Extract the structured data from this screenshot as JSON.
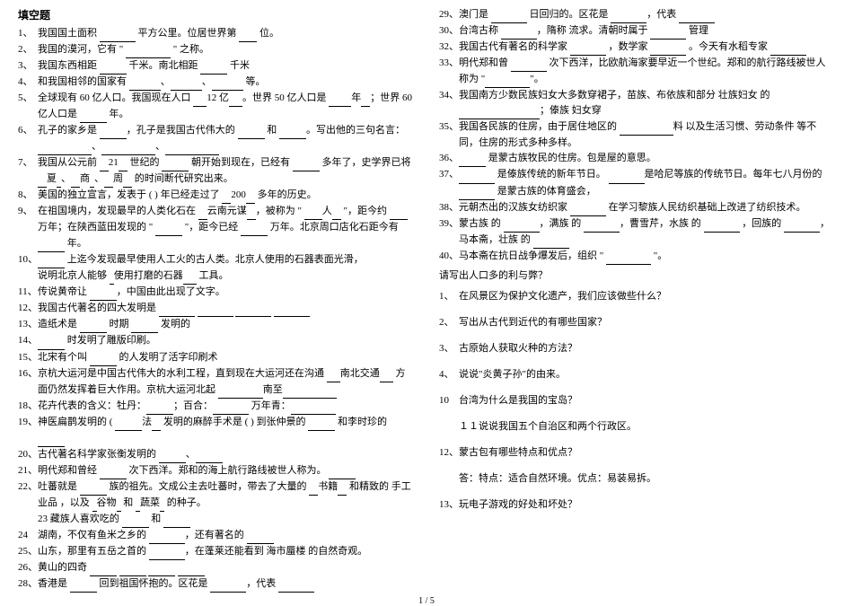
{
  "left": {
    "heading": "填空题",
    "items": [
      {
        "n": "1、",
        "t": "我国国土面积 ________ 平方公里。位居世界第 ____ 位。"
      },
      {
        "n": "2、",
        "t": "我国的漠河，它有 \" __________ \" 之称。"
      },
      {
        "n": "3、",
        "t": "我国东西相距 ______ 千米。南北相距 ______ 千米"
      },
      {
        "n": "4、",
        "t": "和我国相邻的国家有 _______、_______、_______ 等。"
      },
      {
        "n": "5、",
        "t": "全球现有  60 亿人口。我国现在人口 ___12 亿___。世界  50 亿人口是 _____年__；世界 60 亿人口是 ______ 年。"
      },
      {
        "n": "6、",
        "t": "孔子的家乡是 ______，孔子是我国古代伟大的 ______ 和 ______。写出他的三句名言：____________、____________、____________"
      },
      {
        "n": "7、",
        "t": "我国从公元前 __21__ 世纪的 ______ 朝开始到现在，已经有 ______ 多年了，史学界已将 __夏_、__商_、__周__ 的时间断代研究出来。"
      },
      {
        "n": "8、",
        "t": "美国的独立宣言，发表于  (           ) 年已经走过了 __200__ 多年的历史。"
      },
      {
        "n": "9、",
        "t": "在祖国境内，发现最早的人类化石在 __云南元谋__，被称为 \" ____人__ \"，距今约 ____ 万年；在陕西蓝田发现的 \" ______ \"，距今已经 ______ 万年。北京周口店化石距今有 ______ 年。"
      },
      {
        "n": "10、",
        "t": "______ 上迄今发现最早使用人工火的古人类。北京人使用的石器表面光滑，"
      },
      {
        "n": "",
        "t": "说明北京人能够 _使用打磨的石器___ 工具。"
      },
      {
        "n": "11、",
        "t": "传说黄帝让 ______，中国由此出现了文字。"
      },
      {
        "n": "12、",
        "t": "我国古代著名的四大发明是 ________ ________ ________ ________"
      },
      {
        "n": "13、",
        "t": "造纸术是 ______ 时期 ______ 发明的"
      },
      {
        "n": "14、",
        "t": "______ 时发明了雕版印刷。"
      },
      {
        "n": "15、",
        "t": "北宋有个叫 ______ 的人发明了活字印刷术"
      },
      {
        "n": "16、",
        "t": "京杭大运河是中国古代伟大的水利工程，直到现在大运河还在沟通 ___南北交通___ 方面仍然发挥着巨大作用。京杭大运河北起 __________南至____________"
      },
      {
        "n": "18、",
        "t": "花卉代表的含义：牡丹：______；百合：________ 万年青：__________"
      },
      {
        "n": "19、",
        "t": "神医扁鹊发明的 ( ______法__ 发明的麻醉手术是  (                    )  到张仲景的 ______ 和李时珍的 ______"
      },
      {
        "n": " 20、",
        "t": "古代著名科学家张衡发明的 ______、______"
      },
      {
        "n": "21、",
        "t": "明代郑和曾经 ______ 次下西洋。郑和的海上航行路线被世人称为。  ______"
      },
      {
        "n": "22、",
        "t": "吐蕃就是 ______ 族的祖先。文成公主去吐蕃时，带去了大量的 __书籍__ 和精致的 手工业品 ，以及 _谷物_ 和 _蔬菜_ 的种子。"
      },
      {
        "n": "",
        "t": "23 藏族人喜欢吃的 ______ 和 ______"
      },
      {
        "n": "24",
        "t": "湖南，不仅有鱼米之乡的 ________，还有著名的 ______"
      },
      {
        "n": "25、",
        "t": "山东，那里有五岳之首的 ________，在蓬莱还能看到 海市蜃楼 的自然奇观。"
      },
      {
        "n": "26、",
        "t": "黄山的四奇 ______ ______ ______ ______"
      },
      {
        "n": "28、",
        "t": "香港是 ______ 回到祖国怀抱的。区花是 ________，代表 ________"
      }
    ]
  },
  "right": {
    "items": [
      {
        "n": "29、",
        "t": "澳门是 ________ 日回归的。区花是 ________，代表 ________"
      },
      {
        "n": "30、",
        "t": "台湾古称 ________，隋称 流求。清朝时属于 ________ 管理"
      },
      {
        "n": "32、",
        "t": "我国古代有著名的科学家 ________ ，数学家 ________ 。今天有水稻专家 ________"
      },
      {
        "n": "33、",
        "t": "明代郑和曾 ________ 次下西洋，比欧航海家要早近一个世纪。郑和的航行路线被世人称为 \"__________\"。"
      },
      {
        "n": "34、",
        "t": "我国南方少数民族妇女大多数穿裙子，苗族、布依族和部分 壮族妇女 的 __________________；傣族 妇女穿"
      },
      {
        "n": "35、",
        "t": "我国各民族的住房，由于居住地区的 ____________料 以及生活习惯、劳动条件 等不同，住房的形式多种多样。"
      },
      {
        "n": "36、",
        "t": "______ 是蒙古族牧民的住房。包是屋的意思。"
      },
      {
        "n": "37、",
        "t": "________ 是傣族传统的新年节日。 ________是哈尼等族的传统节日。每年七八月份的 ________ 是蒙古族的体育盛会，"
      },
      {
        "n": "38、",
        "t": "元朝杰出的汉族女纺织家 ________ 在学习黎族人民纺织基础上改进了纺织技术。"
      },
      {
        "n": "39、",
        "t": "蒙古族 的 ________，满族 的 ________，曹雪芹，水族 的 ________ ，回族的 ________，马本斋，壮族 的 ________"
      },
      {
        "n": "40、",
        "t": "马本斋在抗日战争爆发后，组织 \" __________ \"。"
      }
    ],
    "heading2": "请写出人口多的利与弊？",
    "qa": [
      {
        "n": "1、",
        "t": "在风景区为保护文化遗产，我们应该做些什么？"
      },
      {
        "n": "2、",
        "t": "写出从古代到近代的有哪些国家？"
      },
      {
        "n": "3、",
        "t": "古原始人获取火种的方法？"
      },
      {
        "n": "4、",
        "t": "说说\"炎黄子孙\"的由来。"
      },
      {
        "n": "10",
        "t": "台湾为什么是我国的宝岛？"
      },
      {
        "n": "",
        "t": "１１说说我国五个自治区和两个行政区。"
      },
      {
        "n": "12、",
        "t": "蒙古包有哪些特点和优点？"
      },
      {
        "n": "",
        "t": "答：特点：适合自然环境。优点：易装易拆。"
      },
      {
        "n": "13、",
        "t": "玩电子游戏的好处和坏处？"
      }
    ]
  },
  "pagenum": "1 / 5"
}
